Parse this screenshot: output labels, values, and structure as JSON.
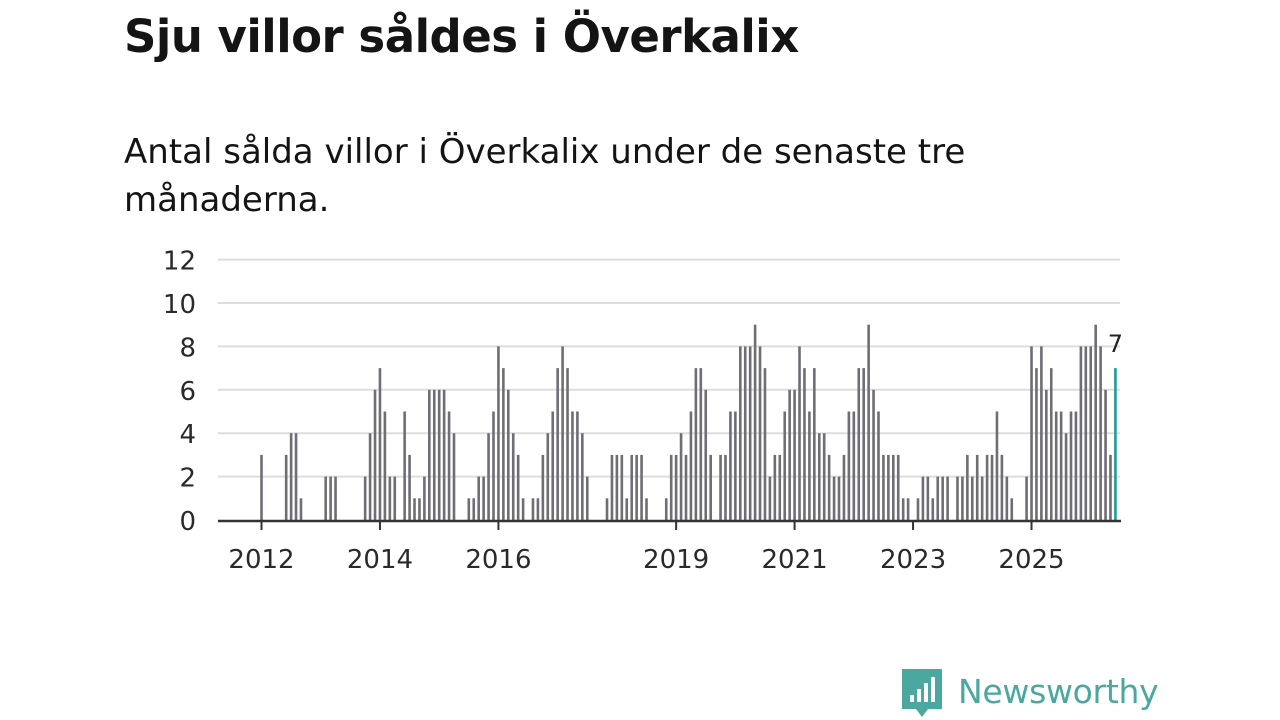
{
  "title": "Sju villor såldes i Överkalix",
  "subtitle": "Antal sålda villor i Överkalix under de senaste tre månaderna.",
  "brand": {
    "name": "Newsworthy",
    "color": "#4aa8a0"
  },
  "colors": {
    "bar": "#6e6e74",
    "highlight": "#1a9e95",
    "grid": "#dddddd",
    "axis": "#333333"
  },
  "chart_data": {
    "type": "bar",
    "start_year": 2012,
    "start_month": 1,
    "ylim": [
      0,
      12
    ],
    "yticks": [
      0,
      2,
      4,
      6,
      8,
      10,
      12
    ],
    "xticks": [
      "2012",
      "2014",
      "2016",
      "2019",
      "2021",
      "2023",
      "2025"
    ],
    "highlight_label": "7",
    "values": [
      3,
      0,
      0,
      0,
      0,
      3,
      4,
      4,
      1,
      0,
      0,
      0,
      0,
      2,
      2,
      2,
      0,
      0,
      0,
      0,
      0,
      2,
      4,
      6,
      7,
      5,
      2,
      2,
      0,
      5,
      3,
      1,
      1,
      2,
      6,
      6,
      6,
      6,
      5,
      4,
      0,
      0,
      1,
      1,
      2,
      2,
      4,
      5,
      8,
      7,
      6,
      4,
      3,
      1,
      0,
      1,
      1,
      3,
      4,
      5,
      7,
      8,
      7,
      5,
      5,
      4,
      2,
      0,
      0,
      0,
      1,
      3,
      3,
      3,
      1,
      3,
      3,
      3,
      1,
      0,
      0,
      0,
      1,
      3,
      3,
      4,
      3,
      5,
      7,
      7,
      6,
      3,
      0,
      3,
      3,
      5,
      5,
      8,
      8,
      8,
      9,
      8,
      7,
      2,
      3,
      3,
      5,
      6,
      6,
      8,
      7,
      5,
      7,
      4,
      4,
      3,
      2,
      2,
      3,
      5,
      5,
      7,
      7,
      9,
      6,
      5,
      3,
      3,
      3,
      3,
      1,
      1,
      0,
      1,
      2,
      2,
      1,
      2,
      2,
      2,
      0,
      2,
      2,
      3,
      2,
      3,
      2,
      3,
      3,
      5,
      3,
      2,
      1,
      0,
      0,
      2,
      8,
      7,
      8,
      6,
      7,
      5,
      5,
      4,
      5,
      5,
      8,
      8,
      8,
      9,
      8,
      6,
      3,
      7
    ]
  }
}
